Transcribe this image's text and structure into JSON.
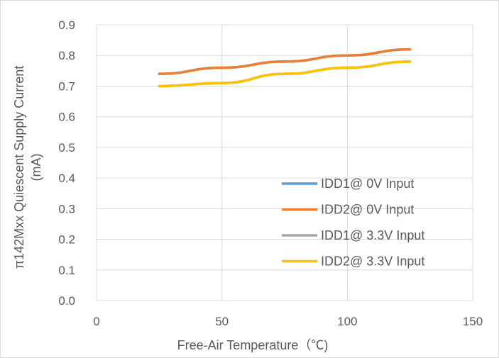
{
  "chart_data": {
    "type": "line",
    "title": "",
    "xlabel": "Free-Air Temperature（℃)",
    "ylabel_lines": [
      "π142Mxx Quiescent Supply Current",
      "(mA)"
    ],
    "xlim": [
      0,
      150
    ],
    "ylim": [
      0,
      0.9
    ],
    "x_ticks": [
      0,
      50,
      100,
      150
    ],
    "x_tick_labels": [
      "0",
      "50",
      "100",
      "150"
    ],
    "y_ticks": [
      0,
      0.1,
      0.2,
      0.3,
      0.4,
      0.5,
      0.6,
      0.7,
      0.8,
      0.9
    ],
    "y_tick_labels": [
      "0.0",
      "0.1",
      "0.2",
      "0.3",
      "0.4",
      "0.5",
      "0.6",
      "0.7",
      "0.8",
      "0.9"
    ],
    "grid": true,
    "legend_position": "center-right",
    "series": [
      {
        "name": "IDD1@ 0V Input",
        "color": "#5b9bd5",
        "x": [
          25,
          50,
          75,
          100,
          125
        ],
        "y": [
          0.74,
          0.76,
          0.78,
          0.8,
          0.82
        ]
      },
      {
        "name": "IDD2@ 0V Input",
        "color": "#ed7d31",
        "x": [
          25,
          50,
          75,
          100,
          125
        ],
        "y": [
          0.74,
          0.76,
          0.78,
          0.8,
          0.82
        ]
      },
      {
        "name": "IDD1@ 3.3V Input",
        "color": "#a5a5a5",
        "x": [
          25,
          50,
          75,
          100,
          125
        ],
        "y": [
          0.7,
          0.71,
          0.74,
          0.76,
          0.78
        ]
      },
      {
        "name": "IDD2@ 3.3V Input",
        "color": "#ffc000",
        "x": [
          25,
          50,
          75,
          100,
          125
        ],
        "y": [
          0.7,
          0.71,
          0.74,
          0.76,
          0.78
        ]
      }
    ]
  }
}
